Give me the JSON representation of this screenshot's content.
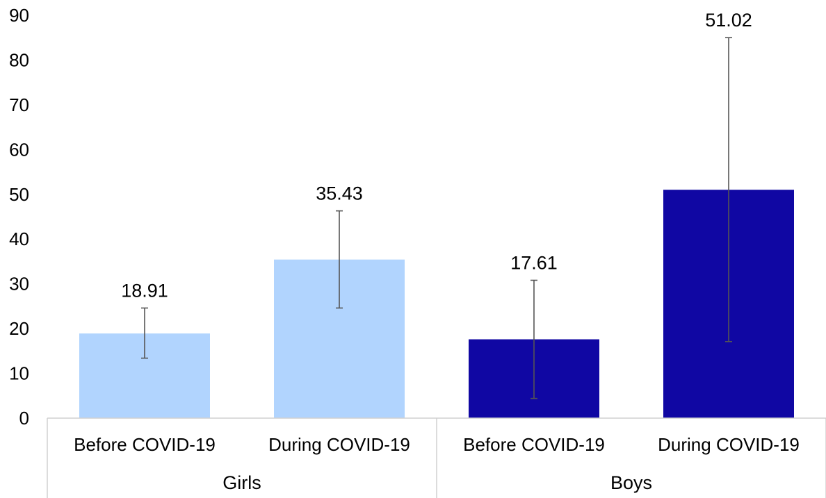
{
  "chart_data": {
    "type": "bar",
    "title": "",
    "xlabel": "",
    "ylabel": "",
    "ylim": [
      0,
      90
    ],
    "yticks": [
      0,
      10,
      20,
      30,
      40,
      50,
      60,
      70,
      80,
      90
    ],
    "grid": false,
    "groups": [
      {
        "name": "Girls",
        "categories": [
          "Before COVID-19",
          "During COVID-19"
        ]
      },
      {
        "name": "Boys",
        "categories": [
          "Before COVID-19",
          "During COVID-19"
        ]
      }
    ],
    "bars": [
      {
        "group": "Girls",
        "category": "Before COVID-19",
        "value": 18.91,
        "label": "18.91",
        "error_low": 13.4,
        "error_high": 24.6,
        "color": "#b1d4fe"
      },
      {
        "group": "Girls",
        "category": "During COVID-19",
        "value": 35.43,
        "label": "35.43",
        "error_low": 24.6,
        "error_high": 46.3,
        "color": "#b1d4fe"
      },
      {
        "group": "Boys",
        "category": "Before COVID-19",
        "value": 17.61,
        "label": "17.61",
        "error_low": 4.4,
        "error_high": 30.8,
        "color": "#1007a3"
      },
      {
        "group": "Boys",
        "category": "During COVID-19",
        "value": 51.02,
        "label": "51.02",
        "error_low": 17.1,
        "error_high": 85.0,
        "color": "#1007a3"
      }
    ]
  }
}
